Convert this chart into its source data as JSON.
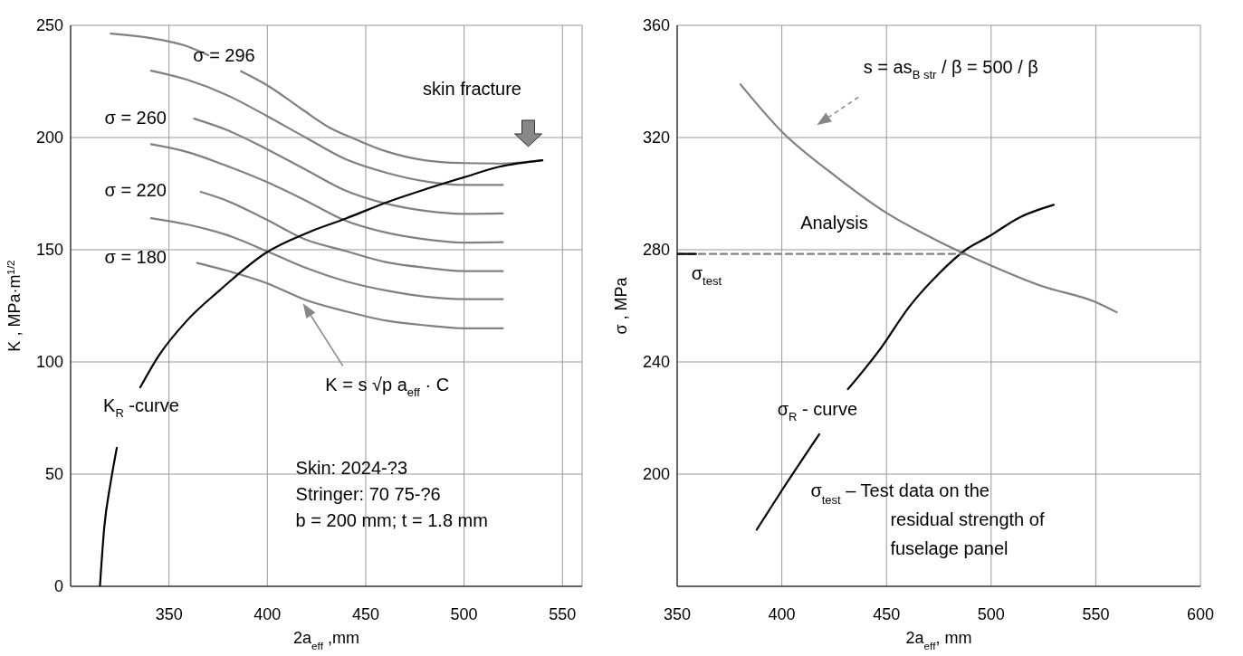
{
  "chart_data": [
    {
      "type": "line",
      "xlabel": "2a$_{eff}$ ,mm",
      "ylabel": "K , MPa·m$^{1/2}$",
      "xlim": [
        300,
        560
      ],
      "xticks": [
        350,
        400,
        450,
        500,
        550
      ],
      "ylim": [
        0,
        250
      ],
      "yticks": [
        0,
        50,
        100,
        150,
        200,
        250
      ],
      "grid": true,
      "marker": "none",
      "series": [
        {
          "color": "#808080",
          "x": [
            320.4,
            340.9,
            357.3,
            370,
            378,
            386.6,
            401,
            417.6,
            432,
            444.9,
            459.5,
            479.8,
            500,
            518,
            539.8
          ],
          "values": [
            246.3,
            244.3,
            241.2,
            236.7,
            null,
            229.5,
            222.7,
            212.6,
            204.2,
            199.2,
            194.1,
            189.9,
            188.6,
            188.4,
            189.9
          ]
        },
        {
          "color": "#808080",
          "x": [
            340.9,
            359.1,
            379.3,
            399.4,
            419.5,
            439.6,
            460.6,
            481.6,
            500,
            519.7
          ],
          "values": [
            229.8,
            225.8,
            219,
            209.8,
            200,
            190.4,
            184.3,
            180.3,
            178.9,
            178.9
          ]
        },
        {
          "color": "#808080",
          "x": [
            362.8,
            379.3,
            399.4,
            419.5,
            439.6,
            460.6,
            481.6,
            500,
            519.7
          ],
          "values": [
            208.4,
            203.4,
            195,
            185.7,
            176.4,
            170.5,
            167.2,
            166,
            166.2
          ]
        },
        {
          "color": "#808080",
          "x": [
            340.9,
            359.1,
            379.3,
            399.4,
            419.5,
            439.6,
            460.6,
            481.6,
            500,
            519.7
          ],
          "values": [
            197,
            193.6,
            187.4,
            180.3,
            171.9,
            163,
            157.6,
            154.5,
            153.2,
            153.4
          ]
        },
        {
          "color": "#808080",
          "x": [
            366.1,
            379.3,
            399.4,
            419.5,
            439.6,
            460.6,
            481.6,
            500,
            519.7
          ],
          "values": [
            175.8,
            171.9,
            163.5,
            154.5,
            149.5,
            144.4,
            141.9,
            140.5,
            140.5
          ]
        },
        {
          "color": "#808080",
          "x": [
            340.9,
            359.1,
            379.3,
            399.4,
            419.5,
            439.6,
            460.6,
            481.6,
            500,
            519.7
          ],
          "values": [
            164.1,
            161.3,
            156.6,
            149.5,
            141.9,
            136,
            131.8,
            129,
            128,
            128
          ]
        },
        {
          "color": "#808080",
          "x": [
            364.3,
            379.3,
            399.4,
            419.5,
            439.6,
            460.6,
            481.6,
            500,
            519.7
          ],
          "values": [
            144.1,
            140.7,
            135.2,
            127.6,
            122.6,
            118.4,
            116.2,
            115,
            115
          ]
        },
        {
          "color": "#000000",
          "x": [
            314.9,
            317.1,
            320.4,
            323.5,
            330,
            335.4,
            344.5,
            359.1,
            375.6,
            399.4,
            421.3,
            439.6,
            461.5,
            481.6,
            500,
            518,
            539.8
          ],
          "values": [
            0,
            26.2,
            46.5,
            61.7,
            null,
            88.7,
            102.4,
            118.4,
            131.8,
            148.7,
            157.9,
            163.8,
            171.4,
            177.3,
            182.3,
            187,
            189.9
          ]
        }
      ],
      "annotations": [
        "σ = 296",
        "σ = 260",
        "σ = 220",
        "σ = 180",
        "skin fracture",
        "K$_{R}$ -curve",
        "K = s √p a$_{eff}$ · C",
        "Skin:  2024-?3\nStringer:  70 75-?6\nb = 200 mm; t = 1.8 mm"
      ]
    },
    {
      "type": "line",
      "xlabel": "2a$_{eff}$, mm",
      "ylabel": "σ , MPa",
      "xlim": [
        350,
        600
      ],
      "xticks": [
        350,
        400,
        450,
        500,
        550,
        600
      ],
      "ylim": [
        160,
        360
      ],
      "yticks": [
        200,
        240,
        280,
        320,
        360
      ],
      "grid": true,
      "marker": "none",
      "series": [
        {
          "color": "#808080",
          "x": [
            380.2,
            400,
            425.7,
            450.1,
            474.9,
            500.2,
            524,
            550.1,
            560
          ],
          "values": [
            339,
            322.1,
            306.2,
            293.1,
            283,
            274.3,
            267.1,
            261.3,
            257.7
          ]
        },
        {
          "color": "#000000",
          "x": [
            388,
            400,
            417.9,
            424,
            431.6,
            446.4,
            461.1,
            474.9,
            488.6,
            498.4,
            514.1,
            529.9
          ],
          "values": [
            180.2,
            194.2,
            214.2,
            null,
            230.3,
            244,
            259.9,
            271.4,
            280.4,
            284.5,
            291.7,
            296
          ]
        },
        {
          "color": "#808080",
          "line_style": "dashed",
          "x": [
            350,
            488.6
          ],
          "values": [
            278.5,
            278.5
          ]
        },
        {
          "color": "#000000",
          "x": [
            350,
            359
          ],
          "values": [
            278.5,
            278.5
          ]
        }
      ],
      "annotations": [
        "s = as$_{B str}$ / β = 500 / β",
        "Analysis",
        "σ$_{test}$",
        "σ$_{R}$ - curve",
        "σ$_{test}$ – Test data on the\nresidual strength of\nfuselage panel"
      ]
    }
  ]
}
